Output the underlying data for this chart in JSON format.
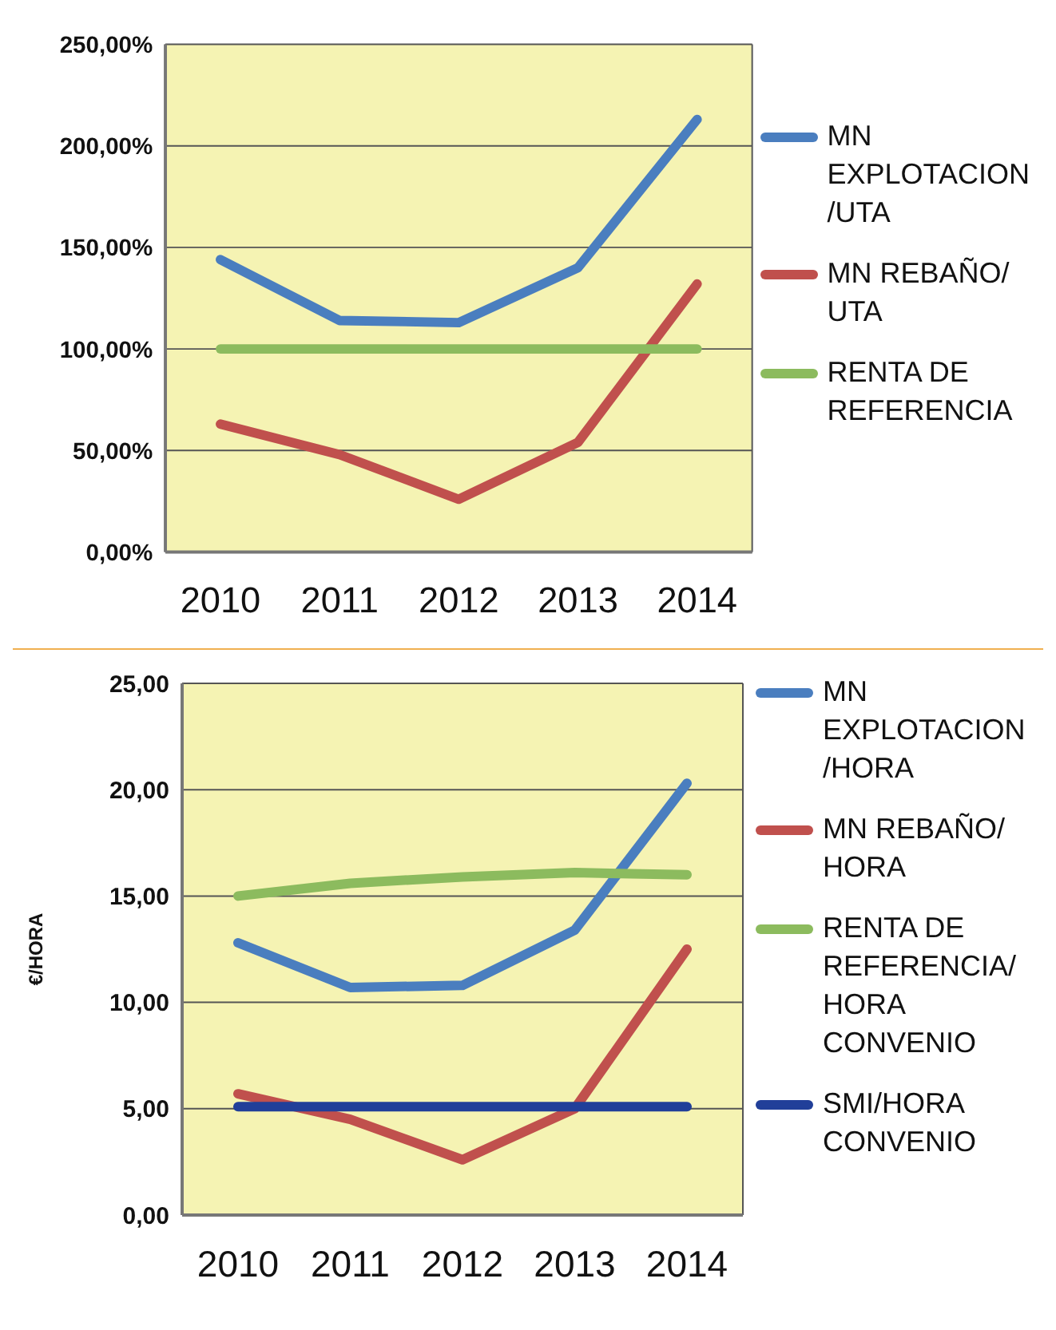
{
  "chart_data": [
    {
      "type": "line",
      "categories": [
        "2010",
        "2011",
        "2012",
        "2013",
        "2014"
      ],
      "series": [
        {
          "name": "MN EXPLOTACION/UTA",
          "color": "#4a7ebf",
          "values": [
            144,
            114,
            113,
            140,
            213
          ]
        },
        {
          "name": "MN REBAÑO/UTA",
          "color": "#c0504d",
          "values": [
            63,
            48,
            26,
            54,
            132
          ]
        },
        {
          "name": "RENTA DE REFERENCIA",
          "color": "#8cbb5e",
          "values": [
            100,
            100,
            100,
            100,
            100
          ]
        }
      ],
      "ylim": [
        0,
        250
      ],
      "yticks": [
        {
          "value": 0,
          "label": "0,00%"
        },
        {
          "value": 50,
          "label": "50,00%"
        },
        {
          "value": 100,
          "label": "100,00%"
        },
        {
          "value": 150,
          "label": "150,00%"
        },
        {
          "value": 200,
          "label": "200,00%"
        },
        {
          "value": 250,
          "label": "250,00%"
        }
      ],
      "grid": "y",
      "legend": "right"
    },
    {
      "type": "line",
      "ylabel": "€/HORA",
      "categories": [
        "2010",
        "2011",
        "2012",
        "2013",
        "2014"
      ],
      "series": [
        {
          "name": "MN EXPLOTACION/HORA",
          "color": "#4a7ebf",
          "values": [
            12.8,
            10.7,
            10.8,
            13.4,
            20.3
          ]
        },
        {
          "name": "MN REBAÑO/HORA",
          "color": "#c0504d",
          "values": [
            5.7,
            4.5,
            2.6,
            5.0,
            12.5
          ]
        },
        {
          "name": "RENTA DE REFERENCIA/HORA CONVENIO",
          "color": "#8cbb5e",
          "values": [
            15.0,
            15.6,
            15.9,
            16.1,
            16.0
          ]
        },
        {
          "name": "SMI/HORA CONVENIO",
          "color": "#213f99",
          "values": [
            5.1,
            5.1,
            5.1,
            5.1,
            5.1
          ]
        }
      ],
      "ylim": [
        0,
        25
      ],
      "yticks": [
        {
          "value": 0,
          "label": "0,00"
        },
        {
          "value": 5,
          "label": "5,00"
        },
        {
          "value": 10,
          "label": "10,00"
        },
        {
          "value": 15,
          "label": "15,00"
        },
        {
          "value": 20,
          "label": "20,00"
        },
        {
          "value": 25,
          "label": "25,00"
        }
      ],
      "grid": "y",
      "legend": "right"
    }
  ]
}
